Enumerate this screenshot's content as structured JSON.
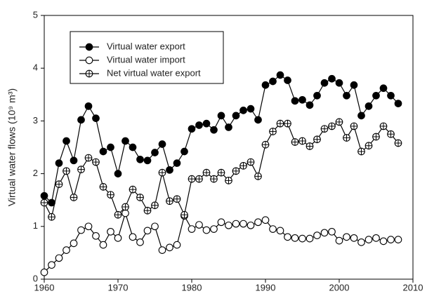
{
  "chart_data": {
    "type": "line",
    "y_label": "Virtual water flows (10⁹ m³)",
    "x": [
      1960,
      1961,
      1962,
      1963,
      1964,
      1965,
      1966,
      1967,
      1968,
      1969,
      1970,
      1971,
      1972,
      1973,
      1974,
      1975,
      1976,
      1977,
      1978,
      1979,
      1980,
      1981,
      1982,
      1983,
      1984,
      1985,
      1986,
      1987,
      1988,
      1989,
      1990,
      1991,
      1992,
      1993,
      1994,
      1995,
      1996,
      1997,
      1998,
      1999,
      2000,
      2001,
      2002,
      2003,
      2004,
      2005,
      2006,
      2007,
      2008
    ],
    "series": [
      {
        "name": "Virtual water export",
        "color": "#000000",
        "marker": "filled",
        "values": [
          1.58,
          1.45,
          2.2,
          2.62,
          2.25,
          3.02,
          3.28,
          3.05,
          2.42,
          2.5,
          2.0,
          2.62,
          2.5,
          2.27,
          2.25,
          2.4,
          2.56,
          2.07,
          2.2,
          2.42,
          2.85,
          2.92,
          2.95,
          2.83,
          3.1,
          2.88,
          3.1,
          3.2,
          3.23,
          3.02,
          3.68,
          3.75,
          3.87,
          3.77,
          3.38,
          3.4,
          3.3,
          3.48,
          3.72,
          3.8,
          3.72,
          3.48,
          3.68,
          3.1,
          3.28,
          3.48,
          3.62,
          3.48,
          3.33
        ]
      },
      {
        "name": "Virtual water import",
        "color": "#000000",
        "marker": "open",
        "values": [
          0.13,
          0.27,
          0.4,
          0.55,
          0.68,
          0.93,
          1.0,
          0.82,
          0.65,
          0.9,
          0.78,
          1.25,
          0.8,
          0.7,
          0.92,
          1.0,
          0.55,
          0.6,
          0.65,
          1.2,
          0.95,
          1.03,
          0.93,
          0.95,
          1.08,
          1.02,
          1.05,
          1.05,
          1.02,
          1.08,
          1.12,
          0.95,
          0.92,
          0.8,
          0.78,
          0.77,
          0.77,
          0.83,
          0.88,
          0.9,
          0.73,
          0.8,
          0.78,
          0.7,
          0.75,
          0.78,
          0.72,
          0.75,
          0.75
        ]
      },
      {
        "name": "Net virtual water export",
        "color": "#000000",
        "marker": "crossed",
        "values": [
          1.45,
          1.18,
          1.8,
          2.05,
          1.55,
          2.08,
          2.3,
          2.22,
          1.75,
          1.6,
          1.22,
          1.37,
          1.7,
          1.55,
          1.3,
          1.4,
          2.02,
          1.48,
          1.52,
          1.22,
          1.9,
          1.9,
          2.02,
          1.9,
          2.02,
          1.87,
          2.05,
          2.15,
          2.22,
          1.95,
          2.55,
          2.8,
          2.95,
          2.95,
          2.6,
          2.62,
          2.52,
          2.65,
          2.85,
          2.9,
          2.98,
          2.68,
          2.9,
          2.42,
          2.53,
          2.7,
          2.9,
          2.75,
          2.58
        ]
      }
    ],
    "xlim": [
      1960,
      2010
    ],
    "xticks": [
      1960,
      1970,
      1980,
      1990,
      2000,
      2010
    ],
    "ylim": [
      0,
      5
    ],
    "yticks": [
      0,
      1,
      2,
      3,
      4,
      5
    ],
    "grid": false,
    "legend": "upper-left"
  }
}
